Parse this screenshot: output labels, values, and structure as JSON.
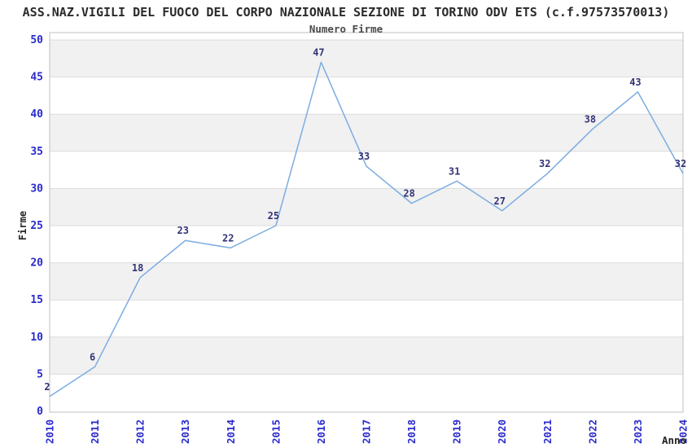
{
  "chart_data": {
    "type": "line",
    "title": "ASS.NAZ.VIGILI DEL FUOCO DEL CORPO NAZIONALE SEZIONE DI TORINO ODV ETS (c.f.97573570013)",
    "subtitle": "Numero Firme",
    "xlabel": "Anno",
    "ylabel": "Firme",
    "x": [
      "2010",
      "2011",
      "2012",
      "2013",
      "2014",
      "2015",
      "2016",
      "2017",
      "2018",
      "2019",
      "2020",
      "2021",
      "2022",
      "2023",
      "2024"
    ],
    "values": [
      2,
      6,
      18,
      23,
      22,
      25,
      47,
      33,
      28,
      31,
      27,
      32,
      38,
      43,
      32
    ],
    "ylim": [
      0,
      50
    ],
    "yticks": [
      0,
      5,
      10,
      15,
      20,
      25,
      30,
      35,
      40,
      45,
      50
    ],
    "grid": "horizontal-bands",
    "legend": "none",
    "colors": {
      "line": "#7cace2",
      "tick_label": "#2a2acc",
      "data_label": "#333377",
      "band": "#f1f1f1",
      "gridline": "#dcdcdc",
      "plot_border": "#c0c0c0",
      "title": "#2b2b2b",
      "subtitle": "#4a4a4a",
      "axis_title": "#222222",
      "background": "#ffffff"
    }
  }
}
